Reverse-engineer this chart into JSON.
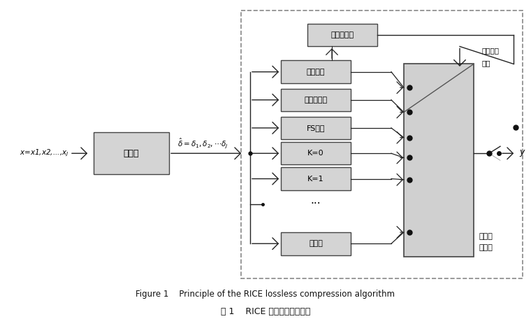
{
  "fig_width": 7.6,
  "fig_height": 4.76,
  "dpi": 100,
  "bg_color": "#ffffff",
  "box_facecolor": "#d4d4d4",
  "box_edgecolor": "#444444",
  "adaptive_facecolor": "#d0d0d0",
  "dashed_box_color": "#888888",
  "arrow_color": "#222222",
  "dot_color": "#111111",
  "title_en": "Figure 1    Principle of the RICE lossless compression algorithm",
  "title_cn": "图 1    RICE 无损压缩算法原理",
  "preprocess_label": "预处理",
  "encoder_selector_label": "编码选择器",
  "selected_label_1": "已选编码",
  "selected_label_2": "选项",
  "adaptive_label_1": "自适应",
  "adaptive_label_2": "缩编码",
  "output_label": "y",
  "encoding_boxes": [
    "零块编码",
    "二分法编码",
    "FS编码",
    "K=0",
    "K=1",
    "...",
    "无压缩"
  ]
}
